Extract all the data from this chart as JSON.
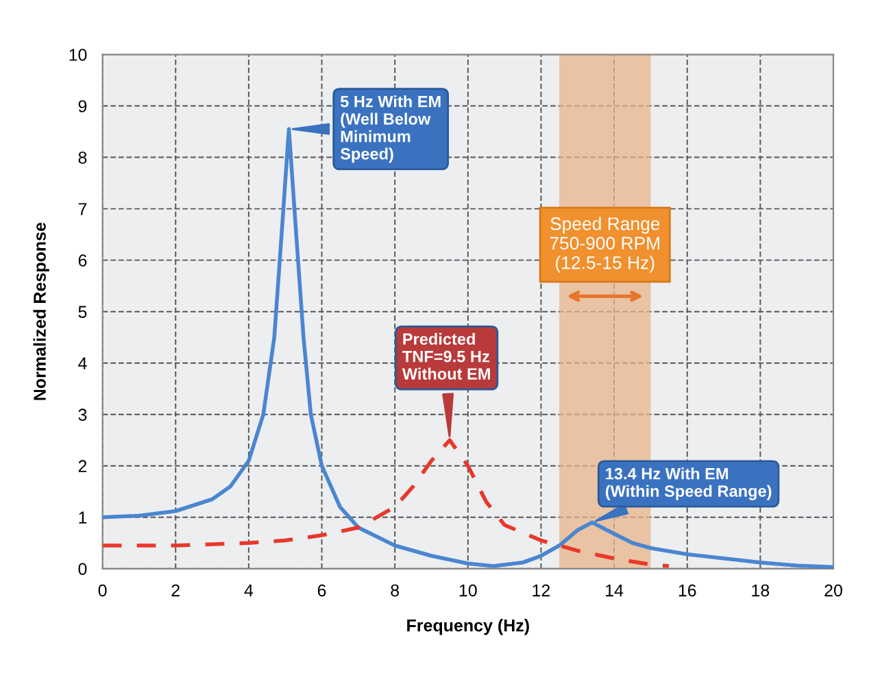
{
  "chart_data": {
    "type": "line",
    "xlabel": "Frequency (Hz)",
    "ylabel": "Normalized Response",
    "xlim": [
      0,
      20
    ],
    "ylim": [
      0,
      10
    ],
    "xticks": [
      0,
      2,
      4,
      6,
      8,
      10,
      12,
      14,
      16,
      18,
      20
    ],
    "yticks": [
      0,
      1,
      2,
      3,
      4,
      5,
      6,
      7,
      8,
      9,
      10
    ],
    "grid": true,
    "legend": false,
    "marker": "none",
    "series": [
      {
        "color": "#4a86d0",
        "line_style": "solid",
        "x": [
          0,
          1,
          2,
          3,
          3.5,
          4,
          4.4,
          4.7,
          4.9,
          5.1,
          5.3,
          5.5,
          5.7,
          6,
          6.5,
          7,
          8,
          9,
          10,
          10.7,
          11.5,
          12,
          12.5,
          13,
          13.4,
          13.8,
          14.5,
          15,
          16,
          17,
          18,
          19,
          20
        ],
        "values": [
          1.0,
          1.03,
          1.12,
          1.35,
          1.6,
          2.1,
          3.0,
          4.5,
          6.5,
          8.55,
          6.5,
          4.5,
          3.0,
          2.0,
          1.2,
          0.8,
          0.45,
          0.25,
          0.1,
          0.05,
          0.12,
          0.25,
          0.45,
          0.75,
          0.9,
          0.75,
          0.5,
          0.4,
          0.28,
          0.2,
          0.12,
          0.06,
          0.03
        ]
      },
      {
        "color": "#e8382a",
        "line_style": "dashed",
        "x": [
          0,
          2,
          4,
          5,
          6,
          7,
          8,
          8.5,
          9,
          9.5,
          10,
          10.5,
          11,
          12,
          13,
          14,
          15,
          15.5
        ],
        "values": [
          0.45,
          0.45,
          0.5,
          0.55,
          0.65,
          0.8,
          1.2,
          1.6,
          2.1,
          2.5,
          2.0,
          1.3,
          0.85,
          0.55,
          0.35,
          0.2,
          0.08,
          0.05
        ]
      }
    ],
    "bands": [
      {
        "axis": "x",
        "from": 12.5,
        "to": 15,
        "color": "#e8b48a",
        "label": "Speed Range\n750-900 RPM\n(12.5-15 Hz)"
      }
    ],
    "annotations": [
      {
        "text": "5 Hz With EM\n(Well Below\nMinimum\nSpeed)",
        "x": 5.1,
        "y": 8.55
      },
      {
        "text": "Predicted\nTNF=9.5 Hz\nWithout EM",
        "x": 9.5,
        "y": 2.5
      },
      {
        "text": "13.4 Hz With EM\n(Within Speed Range)",
        "x": 13.4,
        "y": 0.9
      }
    ]
  }
}
